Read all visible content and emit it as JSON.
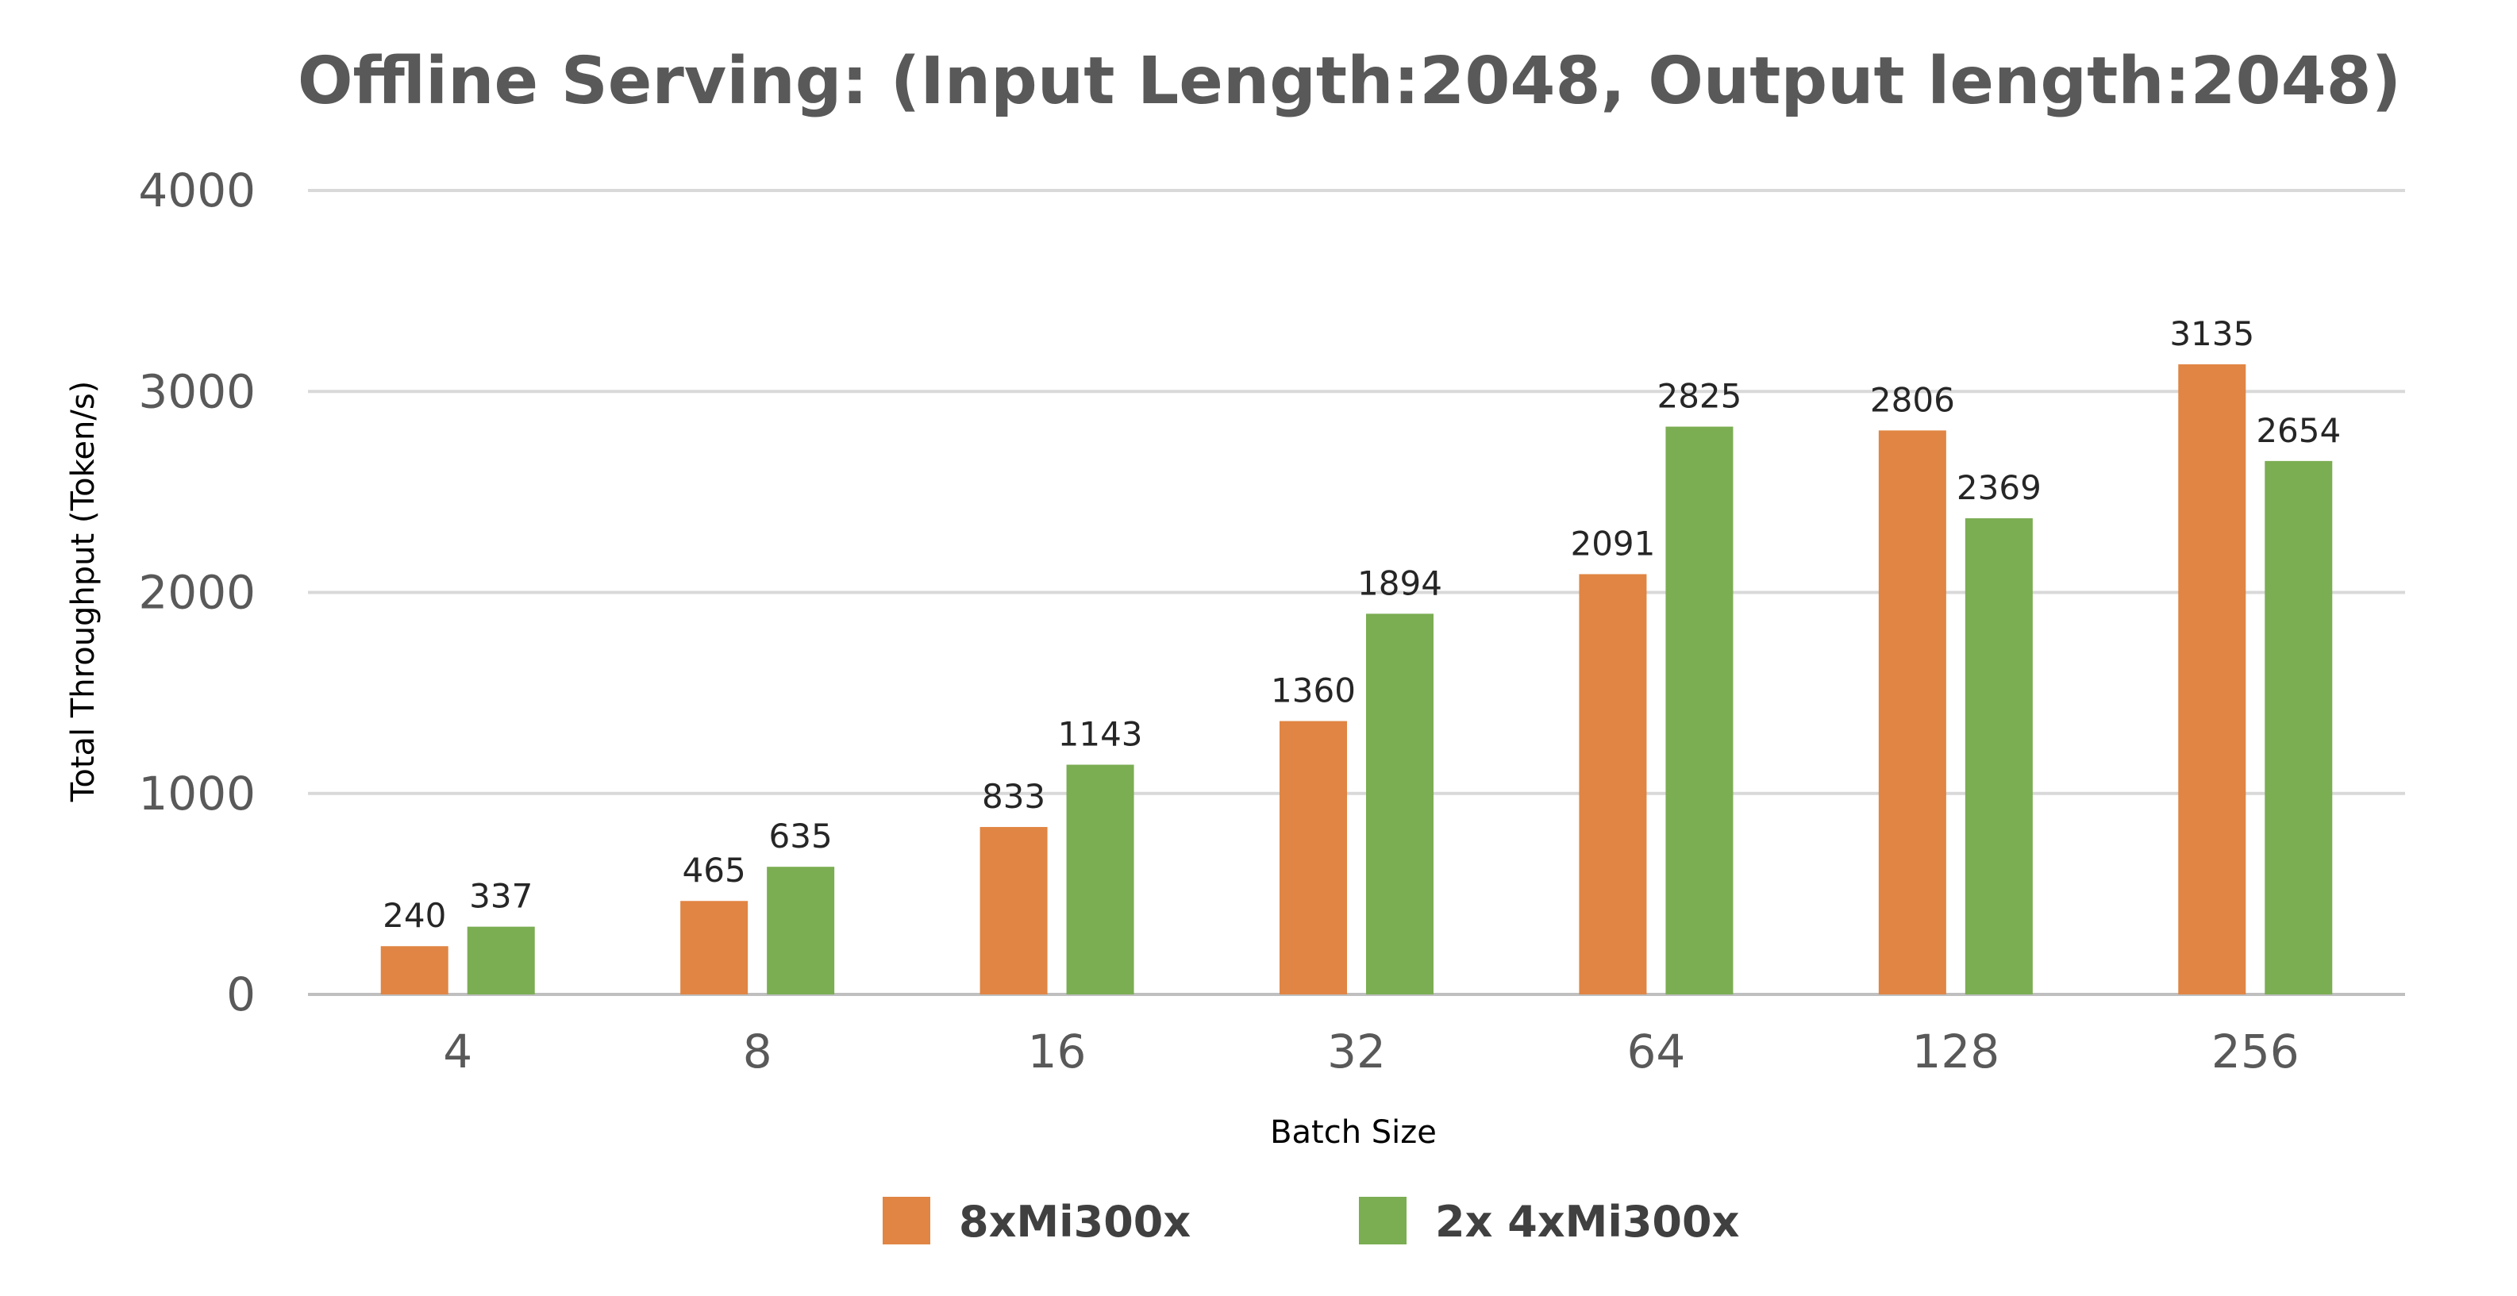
{
  "chart_data": {
    "type": "bar",
    "title": "Offline Serving: (Input Length:2048, Output length:2048)",
    "xlabel": "Batch Size",
    "ylabel": "Total Throughput (Token/s)",
    "categories": [
      "4",
      "8",
      "16",
      "32",
      "64",
      "128",
      "256"
    ],
    "ylim": [
      0,
      4000
    ],
    "yticks": [
      0,
      1000,
      2000,
      3000,
      4000
    ],
    "grid": true,
    "legend_position": "bottom",
    "data_labels": true,
    "series": [
      {
        "name": "8xMi300x",
        "color": "#e08543",
        "values": [
          240,
          465,
          833,
          1360,
          2091,
          2806,
          3135
        ]
      },
      {
        "name": "2x 4xMi300x",
        "color": "#7bad52",
        "values": [
          337,
          635,
          1143,
          1894,
          2825,
          2369,
          2654
        ]
      }
    ]
  }
}
